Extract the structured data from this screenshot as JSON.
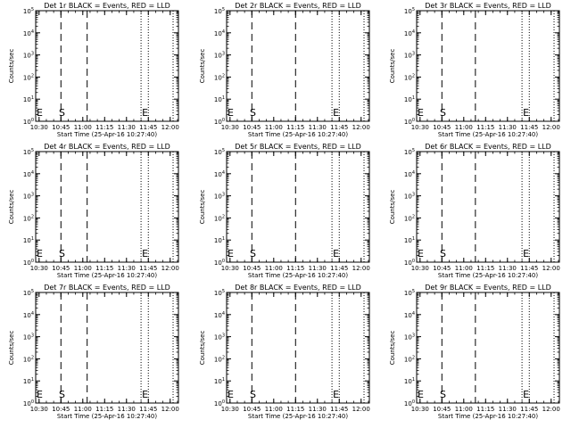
{
  "chart_data": [
    {
      "type": "line",
      "title": "Det 1r BLACK = Events, RED = LLD",
      "xlabel": "Start Time (25-Apr-16 10:27:40)",
      "ylabel": "Counts/sec",
      "x_ticks": [
        "10:30",
        "10:45",
        "11:00",
        "11:15",
        "11:30",
        "11:45",
        "12:00"
      ],
      "y_ticks": [
        "10^0",
        "10^1",
        "10^2",
        "10^3",
        "10^4",
        "10^5"
      ],
      "yscale": "log",
      "ylim": [
        1,
        100000
      ],
      "xlim": [
        "10:27:40",
        "12:05:40"
      ],
      "markers": [
        {
          "label": "E",
          "time": "10:27:40"
        },
        {
          "label": "S",
          "time": "10:43:00"
        },
        {
          "label": "E",
          "time": "11:40:00"
        }
      ],
      "dashed_lines": [
        "10:45:00",
        "11:03:00"
      ],
      "dotted_lines": [
        "11:40:00",
        "11:45:00",
        "12:02:00"
      ],
      "series": []
    },
    {
      "type": "line",
      "title": "Det 2r BLACK = Events, RED = LLD",
      "xlabel": "Start Time (25-Apr-16 10:27:40)",
      "ylabel": "Counts/sec",
      "x_ticks": [
        "10:30",
        "10:45",
        "11:00",
        "11:15",
        "11:30",
        "11:45",
        "12:00"
      ],
      "y_ticks": [
        "10^0",
        "10^1",
        "10^2",
        "10^3",
        "10^4",
        "10^5"
      ],
      "yscale": "log",
      "ylim": [
        1,
        100000
      ],
      "xlim": [
        "10:27:40",
        "12:05:40"
      ],
      "markers": [
        {
          "label": "E",
          "time": "10:27:40"
        },
        {
          "label": "S",
          "time": "10:43:00"
        },
        {
          "label": "E",
          "time": "11:40:00"
        }
      ],
      "dashed_lines": [
        "10:45:00",
        "11:15:00"
      ],
      "dotted_lines": [
        "11:40:00",
        "11:45:00",
        "12:02:00"
      ],
      "series": []
    },
    {
      "type": "line",
      "title": "Det 3r BLACK = Events, RED = LLD",
      "xlabel": "Start Time (25-Apr-16 10:27:40)",
      "ylabel": "Counts/sec",
      "x_ticks": [
        "10:30",
        "10:45",
        "11:00",
        "11:15",
        "11:30",
        "11:45",
        "12:00"
      ],
      "y_ticks": [
        "10^0",
        "10^1",
        "10^2",
        "10^3",
        "10^4",
        "10^5"
      ],
      "yscale": "log",
      "ylim": [
        1,
        100000
      ],
      "xlim": [
        "10:27:40",
        "12:05:40"
      ],
      "markers": [
        {
          "label": "E",
          "time": "10:27:40"
        },
        {
          "label": "S",
          "time": "10:43:00"
        },
        {
          "label": "E",
          "time": "11:40:00"
        }
      ],
      "dashed_lines": [
        "10:45:00",
        "11:08:00"
      ],
      "dotted_lines": [
        "11:40:00",
        "11:45:00",
        "12:02:00"
      ],
      "series": []
    },
    {
      "type": "line",
      "title": "Det 4r BLACK = Events, RED = LLD",
      "xlabel": "Start Time (25-Apr-16 10:27:40)",
      "ylabel": "Counts/sec",
      "x_ticks": [
        "10:30",
        "10:45",
        "11:00",
        "11:15",
        "11:30",
        "11:45",
        "12:00"
      ],
      "y_ticks": [
        "10^0",
        "10^1",
        "10^2",
        "10^3",
        "10^4",
        "10^5"
      ],
      "yscale": "log",
      "ylim": [
        1,
        100000
      ],
      "xlim": [
        "10:27:40",
        "12:05:40"
      ],
      "markers": [
        {
          "label": "E",
          "time": "10:27:40"
        },
        {
          "label": "S",
          "time": "10:43:00"
        },
        {
          "label": "E",
          "time": "11:40:00"
        }
      ],
      "dashed_lines": [
        "10:45:00",
        "11:03:00"
      ],
      "dotted_lines": [
        "11:40:00",
        "11:45:00",
        "12:02:00"
      ],
      "series": []
    },
    {
      "type": "line",
      "title": "Det 5r BLACK = Events, RED = LLD",
      "xlabel": "Start Time (25-Apr-16 10:27:40)",
      "ylabel": "Counts/sec",
      "x_ticks": [
        "10:30",
        "10:45",
        "11:00",
        "11:15",
        "11:30",
        "11:45",
        "12:00"
      ],
      "y_ticks": [
        "10^0",
        "10^1",
        "10^2",
        "10^3",
        "10^4",
        "10^5"
      ],
      "yscale": "log",
      "ylim": [
        1,
        100000
      ],
      "xlim": [
        "10:27:40",
        "12:05:40"
      ],
      "markers": [
        {
          "label": "E",
          "time": "10:27:40"
        },
        {
          "label": "S",
          "time": "10:43:00"
        },
        {
          "label": "E",
          "time": "11:40:00"
        }
      ],
      "dashed_lines": [
        "10:45:00",
        "11:15:00"
      ],
      "dotted_lines": [
        "11:40:00",
        "11:45:00",
        "12:02:00"
      ],
      "series": []
    },
    {
      "type": "line",
      "title": "Det 6r BLACK = Events, RED = LLD",
      "xlabel": "Start Time (25-Apr-16 10:27:40)",
      "ylabel": "Counts/sec",
      "x_ticks": [
        "10:30",
        "10:45",
        "11:00",
        "11:15",
        "11:30",
        "11:45",
        "12:00"
      ],
      "y_ticks": [
        "10^0",
        "10^1",
        "10^2",
        "10^3",
        "10^4",
        "10^5"
      ],
      "yscale": "log",
      "ylim": [
        1,
        100000
      ],
      "xlim": [
        "10:27:40",
        "12:05:40"
      ],
      "markers": [
        {
          "label": "E",
          "time": "10:27:40"
        },
        {
          "label": "S",
          "time": "10:43:00"
        },
        {
          "label": "E",
          "time": "11:40:00"
        }
      ],
      "dashed_lines": [
        "10:45:00",
        "11:08:00"
      ],
      "dotted_lines": [
        "11:40:00",
        "11:45:00",
        "12:02:00"
      ],
      "series": []
    },
    {
      "type": "line",
      "title": "Det 7r BLACK = Events, RED = LLD",
      "xlabel": "Start Time (25-Apr-16 10:27:40)",
      "ylabel": "Counts/sec",
      "x_ticks": [
        "10:30",
        "10:45",
        "11:00",
        "11:15",
        "11:30",
        "11:45",
        "12:00"
      ],
      "y_ticks": [
        "10^0",
        "10^1",
        "10^2",
        "10^3",
        "10^4",
        "10^5"
      ],
      "yscale": "log",
      "ylim": [
        1,
        100000
      ],
      "xlim": [
        "10:27:40",
        "12:05:40"
      ],
      "markers": [
        {
          "label": "E",
          "time": "10:27:40"
        },
        {
          "label": "S",
          "time": "10:43:00"
        },
        {
          "label": "E",
          "time": "11:40:00"
        }
      ],
      "dashed_lines": [
        "10:45:00",
        "11:03:00"
      ],
      "dotted_lines": [
        "11:40:00",
        "11:45:00",
        "12:02:00"
      ],
      "series": []
    },
    {
      "type": "line",
      "title": "Det 8r BLACK = Events, RED = LLD",
      "xlabel": "Start Time (25-Apr-16 10:27:40)",
      "ylabel": "Counts/sec",
      "x_ticks": [
        "10:30",
        "10:45",
        "11:00",
        "11:15",
        "11:30",
        "11:45",
        "12:00"
      ],
      "y_ticks": [
        "10^0",
        "10^1",
        "10^2",
        "10^3",
        "10^4",
        "10^5"
      ],
      "yscale": "log",
      "ylim": [
        1,
        100000
      ],
      "xlim": [
        "10:27:40",
        "12:05:40"
      ],
      "markers": [
        {
          "label": "E",
          "time": "10:27:40"
        },
        {
          "label": "S",
          "time": "10:43:00"
        },
        {
          "label": "E",
          "time": "11:40:00"
        }
      ],
      "dashed_lines": [
        "10:45:00",
        "11:15:00"
      ],
      "dotted_lines": [
        "11:40:00",
        "11:45:00",
        "12:02:00"
      ],
      "series": []
    },
    {
      "type": "line",
      "title": "Det 9r BLACK = Events, RED = LLD",
      "xlabel": "Start Time (25-Apr-16 10:27:40)",
      "ylabel": "Counts/sec",
      "x_ticks": [
        "10:30",
        "10:45",
        "11:00",
        "11:15",
        "11:30",
        "11:45",
        "12:00"
      ],
      "y_ticks": [
        "10^0",
        "10^1",
        "10^2",
        "10^3",
        "10^4",
        "10^5"
      ],
      "yscale": "log",
      "ylim": [
        1,
        100000
      ],
      "xlim": [
        "10:27:40",
        "12:05:40"
      ],
      "markers": [
        {
          "label": "E",
          "time": "10:27:40"
        },
        {
          "label": "S",
          "time": "10:43:00"
        },
        {
          "label": "E",
          "time": "11:40:00"
        }
      ],
      "dashed_lines": [
        "10:45:00",
        "11:08:00"
      ],
      "dotted_lines": [
        "11:40:00",
        "11:45:00",
        "12:02:00"
      ],
      "series": []
    }
  ]
}
